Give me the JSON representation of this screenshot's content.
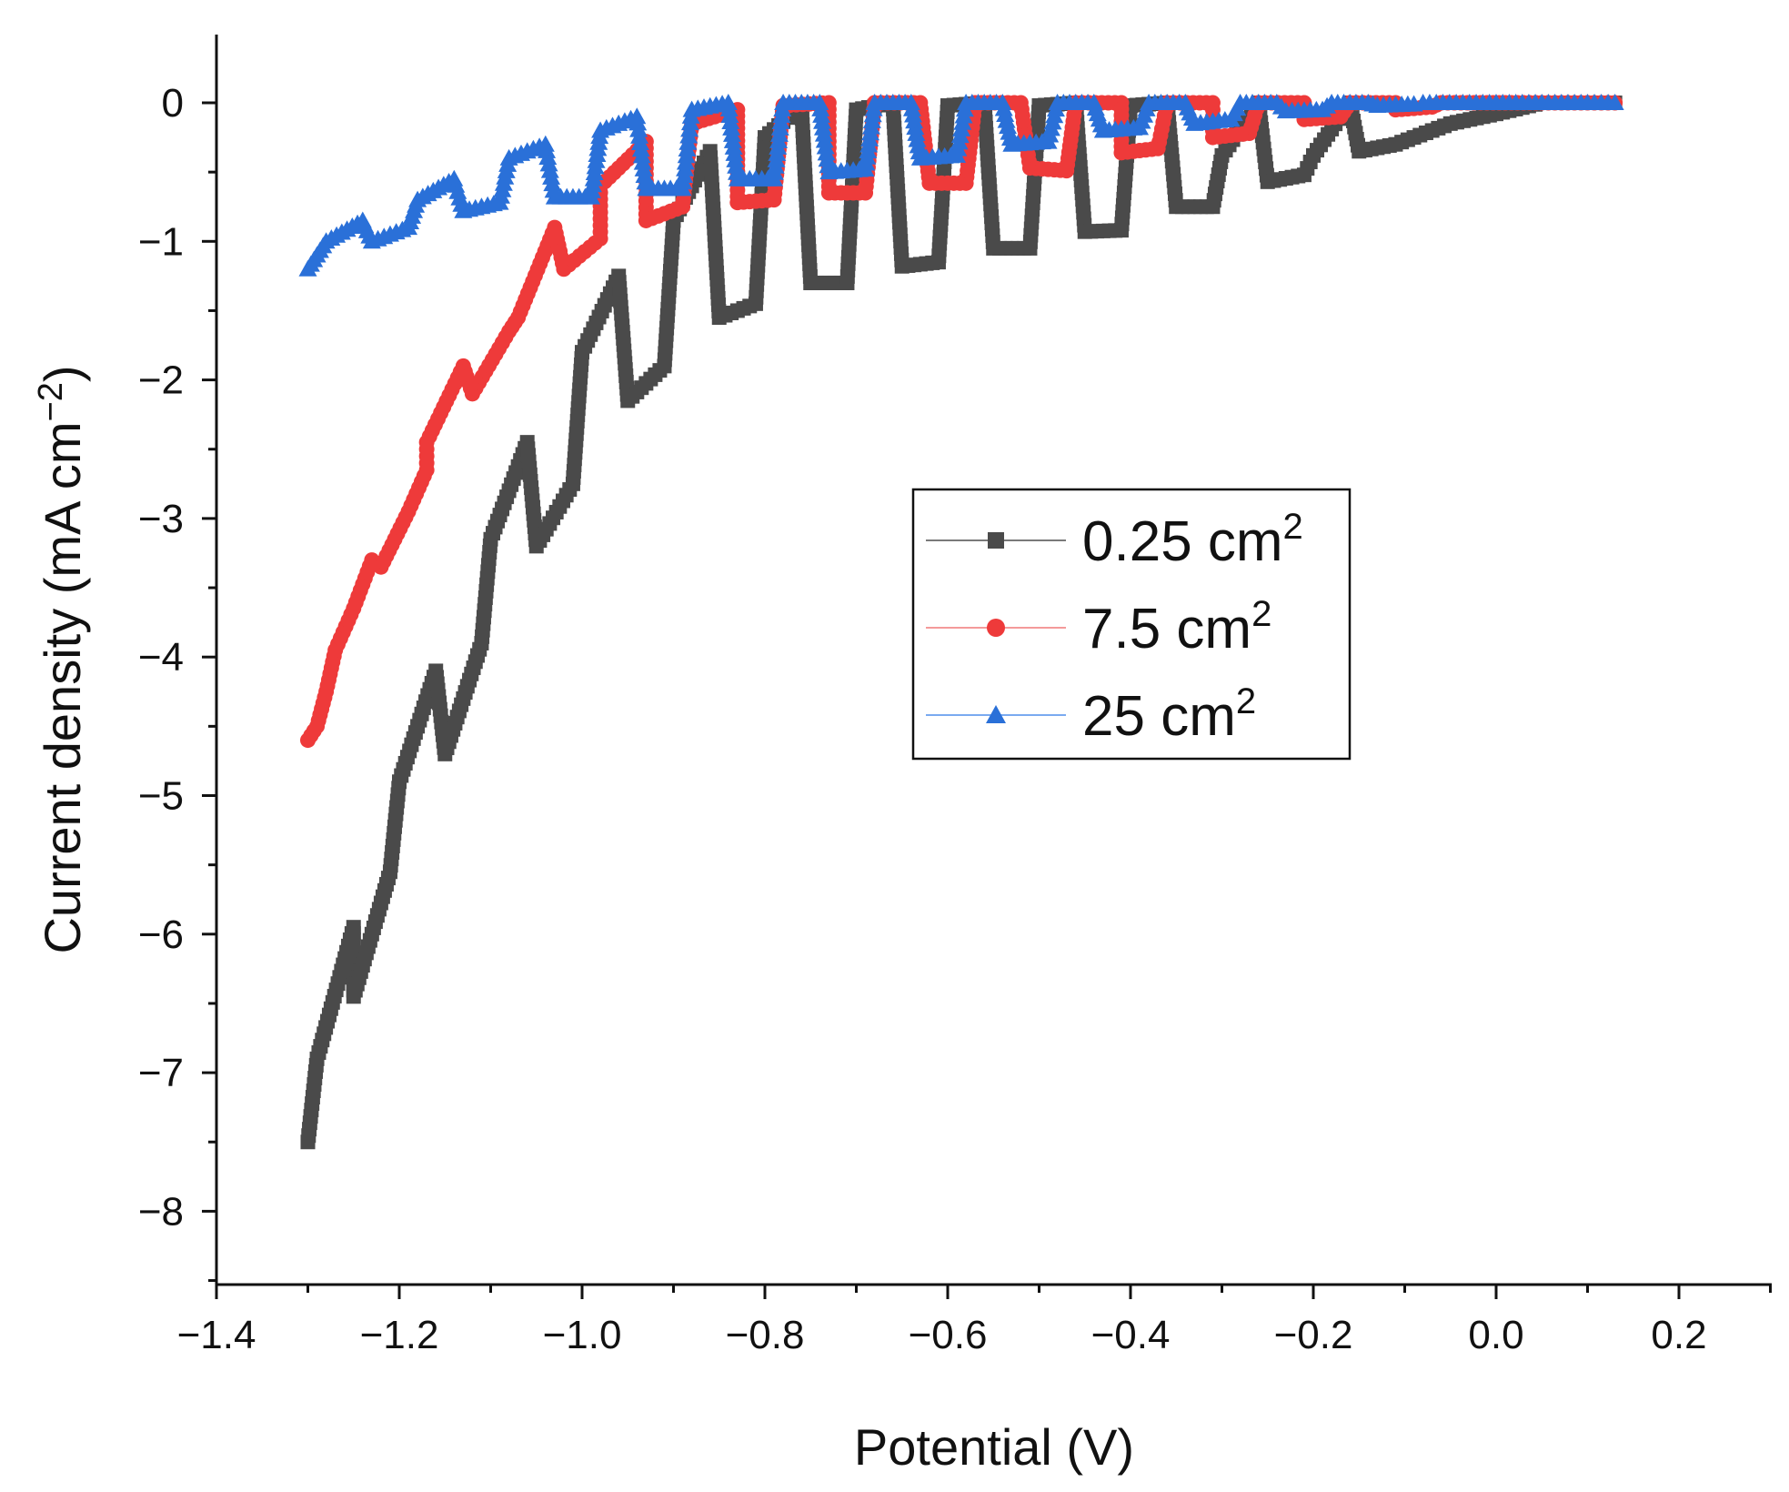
{
  "chart_data": {
    "type": "line",
    "title": "",
    "xlabel": "Potential (V)",
    "ylabel": "Current density (mA cm",
    "ylabel_sup": "−2",
    "ylabel_tail": ")",
    "xlim": [
      -1.4,
      0.3
    ],
    "ylim": [
      -8.5,
      0.5
    ],
    "x_ticks": [
      -1.4,
      -1.2,
      -1.0,
      -0.8,
      -0.6,
      -0.4,
      -0.2,
      0.0,
      0.2
    ],
    "x_tick_labels": [
      "−1.4",
      "−1.2",
      "−1.0",
      "−0.8",
      "−0.6",
      "−0.4",
      "−0.2",
      "0.0",
      "0.2"
    ],
    "y_ticks": [
      0,
      -1,
      -2,
      -3,
      -4,
      -5,
      -6,
      -7,
      -8
    ],
    "y_tick_labels": [
      "0",
      "−1",
      "−2",
      "−3",
      "−4",
      "−5",
      "−6",
      "−7",
      "−8"
    ],
    "legend": {
      "placement": "center-right"
    },
    "series": [
      {
        "name": "0.25 cm",
        "name_sup": "2",
        "color": "#4a4a4a",
        "line_color": "#7a7a7a",
        "marker": "square",
        "points": [
          [
            -1.3,
            -7.5
          ],
          [
            -1.29,
            -6.9
          ],
          [
            -1.25,
            -5.95
          ],
          [
            -1.25,
            -6.45
          ],
          [
            -1.21,
            -5.55
          ],
          [
            -1.2,
            -4.9
          ],
          [
            -1.16,
            -4.1
          ],
          [
            -1.15,
            -4.7
          ],
          [
            -1.11,
            -3.9
          ],
          [
            -1.1,
            -3.15
          ],
          [
            -1.06,
            -2.45
          ],
          [
            -1.05,
            -3.2
          ],
          [
            -1.01,
            -2.75
          ],
          [
            -1.0,
            -1.8
          ],
          [
            -0.96,
            -1.25
          ],
          [
            -0.95,
            -2.15
          ],
          [
            -0.91,
            -1.9
          ],
          [
            -0.9,
            -0.85
          ],
          [
            -0.86,
            -0.35
          ],
          [
            -0.85,
            -1.55
          ],
          [
            -0.81,
            -1.45
          ],
          [
            -0.8,
            -0.25
          ],
          [
            -0.76,
            -0.02
          ],
          [
            -0.75,
            -1.3
          ],
          [
            -0.71,
            -1.3
          ],
          [
            -0.7,
            -0.05
          ],
          [
            -0.66,
            0.0
          ],
          [
            -0.65,
            -1.18
          ],
          [
            -0.61,
            -1.15
          ],
          [
            -0.6,
            -0.02
          ],
          [
            -0.56,
            0.0
          ],
          [
            -0.55,
            -1.05
          ],
          [
            -0.51,
            -1.05
          ],
          [
            -0.5,
            -0.02
          ],
          [
            -0.46,
            0.0
          ],
          [
            -0.45,
            -0.93
          ],
          [
            -0.41,
            -0.92
          ],
          [
            -0.4,
            -0.02
          ],
          [
            -0.36,
            0.0
          ],
          [
            -0.35,
            -0.75
          ],
          [
            -0.31,
            -0.75
          ],
          [
            -0.3,
            -0.38
          ],
          [
            -0.26,
            0.0
          ],
          [
            -0.25,
            -0.57
          ],
          [
            -0.21,
            -0.52
          ],
          [
            -0.2,
            -0.38
          ],
          [
            -0.16,
            0.0
          ],
          [
            -0.15,
            -0.35
          ],
          [
            -0.11,
            -0.3
          ],
          [
            -0.05,
            -0.15
          ],
          [
            0.0,
            -0.08
          ],
          [
            0.05,
            0.0
          ],
          [
            0.1,
            0.0
          ],
          [
            0.13,
            0.0
          ]
        ]
      },
      {
        "name": "7.5 cm",
        "name_sup": "2",
        "color": "#ee3a3a",
        "line_color": "#f49a9a",
        "marker": "circle",
        "points": [
          [
            -1.3,
            -4.6
          ],
          [
            -1.29,
            -4.5
          ],
          [
            -1.28,
            -4.25
          ],
          [
            -1.27,
            -3.95
          ],
          [
            -1.25,
            -3.65
          ],
          [
            -1.23,
            -3.3
          ],
          [
            -1.22,
            -3.35
          ],
          [
            -1.19,
            -2.95
          ],
          [
            -1.17,
            -2.65
          ],
          [
            -1.17,
            -2.45
          ],
          [
            -1.13,
            -1.9
          ],
          [
            -1.12,
            -2.1
          ],
          [
            -1.08,
            -1.65
          ],
          [
            -1.07,
            -1.55
          ],
          [
            -1.03,
            -0.9
          ],
          [
            -1.02,
            -1.2
          ],
          [
            -0.98,
            -0.98
          ],
          [
            -0.98,
            -0.6
          ],
          [
            -0.93,
            -0.28
          ],
          [
            -0.93,
            -0.85
          ],
          [
            -0.89,
            -0.75
          ],
          [
            -0.88,
            -0.15
          ],
          [
            -0.83,
            -0.05
          ],
          [
            -0.83,
            -0.72
          ],
          [
            -0.79,
            -0.7
          ],
          [
            -0.78,
            -0.02
          ],
          [
            -0.73,
            0.0
          ],
          [
            -0.73,
            -0.65
          ],
          [
            -0.69,
            -0.65
          ],
          [
            -0.68,
            0.0
          ],
          [
            -0.63,
            0.0
          ],
          [
            -0.62,
            -0.58
          ],
          [
            -0.58,
            -0.58
          ],
          [
            -0.57,
            0.0
          ],
          [
            -0.52,
            0.0
          ],
          [
            -0.51,
            -0.47
          ],
          [
            -0.47,
            -0.49
          ],
          [
            -0.46,
            0.0
          ],
          [
            -0.41,
            0.0
          ],
          [
            -0.41,
            -0.36
          ],
          [
            -0.37,
            -0.33
          ],
          [
            -0.36,
            0.0
          ],
          [
            -0.31,
            0.0
          ],
          [
            -0.31,
            -0.25
          ],
          [
            -0.27,
            -0.22
          ],
          [
            -0.26,
            0.0
          ],
          [
            -0.21,
            0.0
          ],
          [
            -0.21,
            -0.12
          ],
          [
            -0.17,
            -0.1
          ],
          [
            -0.16,
            0.0
          ],
          [
            -0.11,
            0.0
          ],
          [
            -0.11,
            -0.05
          ],
          [
            -0.07,
            -0.03
          ],
          [
            -0.06,
            0.0
          ],
          [
            -0.01,
            0.0
          ],
          [
            0.05,
            0.0
          ],
          [
            0.1,
            0.0
          ],
          [
            0.13,
            0.0
          ]
        ]
      },
      {
        "name": "25 cm",
        "name_sup": "2",
        "color": "#2a70d8",
        "line_color": "#7aaaf0",
        "marker": "triangle",
        "points": [
          [
            -1.3,
            -1.2
          ],
          [
            -1.29,
            -1.1
          ],
          [
            -1.28,
            -1.0
          ],
          [
            -1.24,
            -0.85
          ],
          [
            -1.23,
            -1.0
          ],
          [
            -1.19,
            -0.9
          ],
          [
            -1.18,
            -0.7
          ],
          [
            -1.14,
            -0.55
          ],
          [
            -1.13,
            -0.78
          ],
          [
            -1.09,
            -0.72
          ],
          [
            -1.08,
            -0.4
          ],
          [
            -1.04,
            -0.3
          ],
          [
            -1.03,
            -0.68
          ],
          [
            -0.99,
            -0.68
          ],
          [
            -0.98,
            -0.2
          ],
          [
            -0.94,
            -0.1
          ],
          [
            -0.93,
            -0.62
          ],
          [
            -0.89,
            -0.62
          ],
          [
            -0.88,
            -0.05
          ],
          [
            -0.84,
            0.0
          ],
          [
            -0.83,
            -0.55
          ],
          [
            -0.79,
            -0.55
          ],
          [
            -0.78,
            0.0
          ],
          [
            -0.74,
            0.0
          ],
          [
            -0.73,
            -0.5
          ],
          [
            -0.69,
            -0.48
          ],
          [
            -0.68,
            0.0
          ],
          [
            -0.64,
            0.0
          ],
          [
            -0.63,
            -0.4
          ],
          [
            -0.59,
            -0.38
          ],
          [
            -0.58,
            0.0
          ],
          [
            -0.54,
            0.0
          ],
          [
            -0.53,
            -0.3
          ],
          [
            -0.49,
            -0.28
          ],
          [
            -0.48,
            0.0
          ],
          [
            -0.44,
            0.0
          ],
          [
            -0.43,
            -0.2
          ],
          [
            -0.39,
            -0.18
          ],
          [
            -0.38,
            0.0
          ],
          [
            -0.34,
            0.0
          ],
          [
            -0.33,
            -0.15
          ],
          [
            -0.29,
            -0.12
          ],
          [
            -0.28,
            0.0
          ],
          [
            -0.24,
            0.0
          ],
          [
            -0.23,
            -0.06
          ],
          [
            -0.19,
            -0.05
          ],
          [
            -0.18,
            0.0
          ],
          [
            -0.14,
            0.0
          ],
          [
            -0.13,
            -0.02
          ],
          [
            -0.09,
            -0.01
          ],
          [
            -0.08,
            0.0
          ],
          [
            0.0,
            0.0
          ],
          [
            0.05,
            0.0
          ],
          [
            0.1,
            0.0
          ],
          [
            0.13,
            0.0
          ]
        ]
      }
    ]
  }
}
